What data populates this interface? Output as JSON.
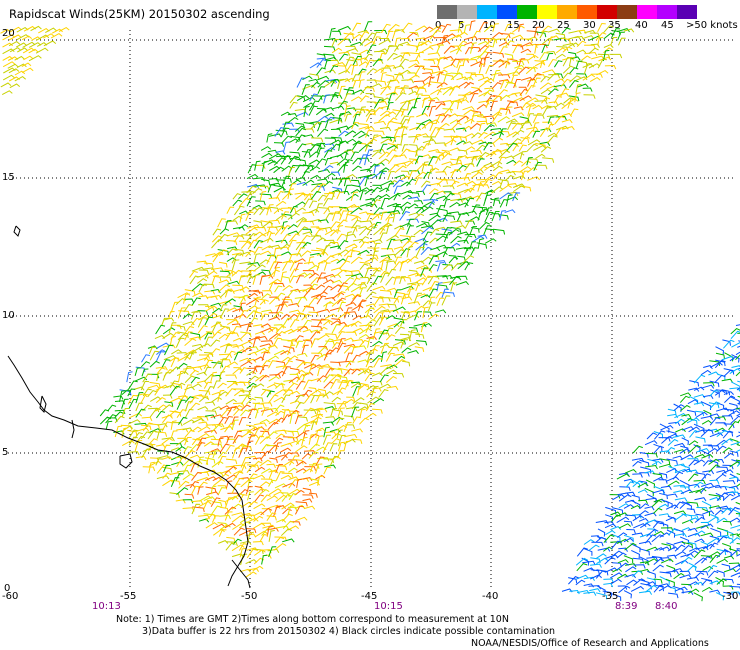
{
  "title": "Rapidscat Winds(25KM) 20150302 ascending",
  "legend": {
    "labels": [
      "0",
      "5",
      "10",
      "15",
      "20",
      "25",
      "30",
      "35",
      "40",
      "45",
      ">50 knots"
    ],
    "colors": [
      "#6e6e6e",
      "#b4b4b4",
      "#00b4ff",
      "#0050ff",
      "#00b400",
      "#ffff00",
      "#ffaa00",
      "#ff5a00",
      "#d20000",
      "#8c3c14",
      "#ff00ff",
      "#b400ff",
      "#5a00b4"
    ]
  },
  "map": {
    "lon_labels": [
      "-60",
      "-55",
      "-50",
      "-45",
      "-40",
      "-35",
      "-30"
    ],
    "lat_labels": [
      "20",
      "15",
      "10",
      "5",
      "0"
    ],
    "time_labels": [
      "10:13",
      "10:15",
      "8:39",
      "8:40"
    ]
  },
  "notes": {
    "line1": "Note: 1) Times are GMT 2)Times along bottom correspond to measurement at 10N",
    "line2": "3)Data buffer is 22 hrs from 20150302 4) Black circles indicate possible contamination",
    "line3": "NOAA/NESDIS/Office of Research and Applications"
  }
}
